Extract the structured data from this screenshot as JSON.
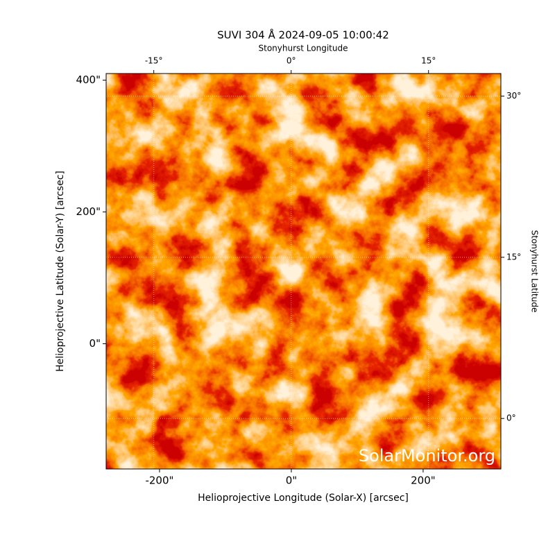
{
  "chart_data": {
    "type": "image",
    "title": "SUVI 304 Å 2024-09-05 10:00:42",
    "xlabel": "Helioprojective Longitude (Solar-X) [arcsec]",
    "ylabel": "Helioprojective Latitude (Solar-Y) [arcsec]",
    "x2label": "Stonyhurst Longitude",
    "y2label": "Stonyhurst Latitude",
    "watermark": "SolarMonitor.org",
    "xlim": [
      -281,
      318
    ],
    "ylim": [
      -190,
      410
    ],
    "xticks": [
      {
        "value": -200,
        "label": "-200\""
      },
      {
        "value": 0,
        "label": "0\""
      },
      {
        "value": 200,
        "label": "200\""
      }
    ],
    "yticks": [
      {
        "value": 0,
        "label": "0\""
      },
      {
        "value": 200,
        "label": "200\""
      },
      {
        "value": 400,
        "label": "400\""
      }
    ],
    "x2lim": [
      -20.2,
      22.9
    ],
    "y2lim": [
      -4.7,
      32.1
    ],
    "x2ticks": [
      {
        "value": -15,
        "label": "-15°"
      },
      {
        "value": 0,
        "label": "0°"
      },
      {
        "value": 15,
        "label": "15°"
      }
    ],
    "y2ticks": [
      {
        "value": 0,
        "label": "0°"
      },
      {
        "value": 15,
        "label": "15°"
      },
      {
        "value": 30,
        "label": "30°"
      }
    ],
    "grid": true
  }
}
